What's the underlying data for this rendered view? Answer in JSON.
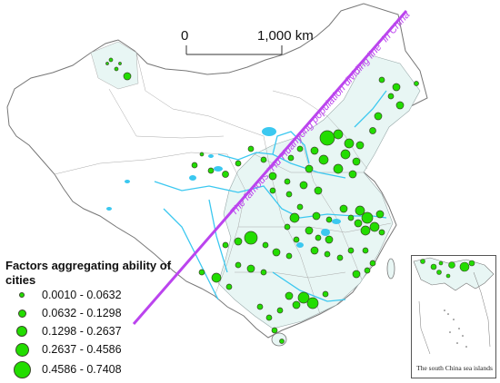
{
  "scale_bar": {
    "zero_label": "0",
    "max_label": "1,000 km"
  },
  "hu_line_label": "The famous \"Hu Huanyong population dividing line\" in China",
  "legend": {
    "title": "Factors aggregating ability of cities",
    "items": [
      {
        "range": "0.0010 - 0.0632"
      },
      {
        "range": "0.0632 - 0.1298"
      },
      {
        "range": "0.1298 - 0.2637"
      },
      {
        "range": "0.2637 - 0.4586"
      },
      {
        "range": "0.4586 - 0.7408"
      }
    ]
  },
  "inset": {
    "caption": "The south China sea islands"
  },
  "colors": {
    "city_fill": "#22dd00",
    "hu_line": "#bb44ee",
    "water": "#3bc8f0",
    "province_fill": "#e6f6f4"
  }
}
